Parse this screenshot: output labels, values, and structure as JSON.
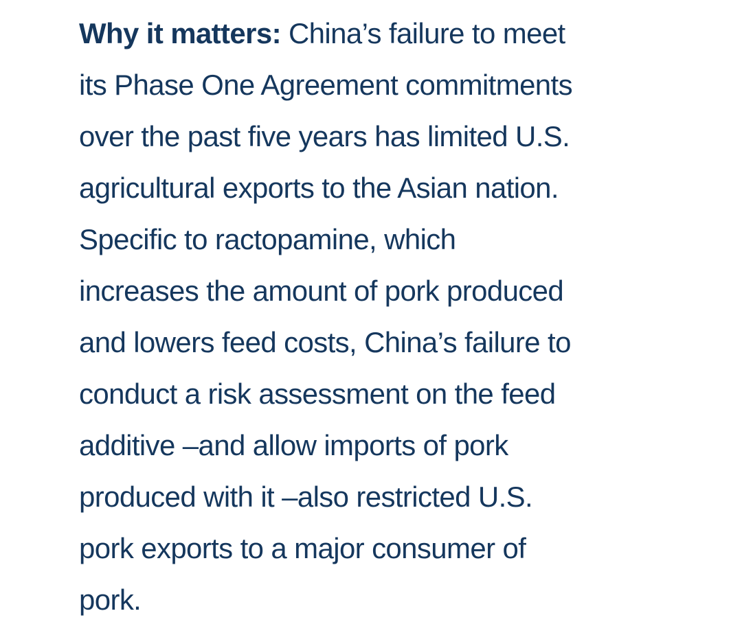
{
  "colors": {
    "text": "#15375d",
    "background": "#ffffff"
  },
  "paragraph": {
    "lead": "Why it matters:",
    "lines": [
      " China’s failure to meet",
      "its Phase One Agreement commitments",
      "over the past five years has limited U.S.",
      "agricultural exports to the Asian nation.",
      "Specific to ractopamine, which",
      "increases the amount of pork produced",
      "and lowers feed costs, China’s failure to",
      "conduct a risk assessment on the feed",
      "additive –and allow imports of pork",
      "produced with it –also restricted U.S.",
      "pork exports to a major consumer of",
      "pork."
    ]
  }
}
